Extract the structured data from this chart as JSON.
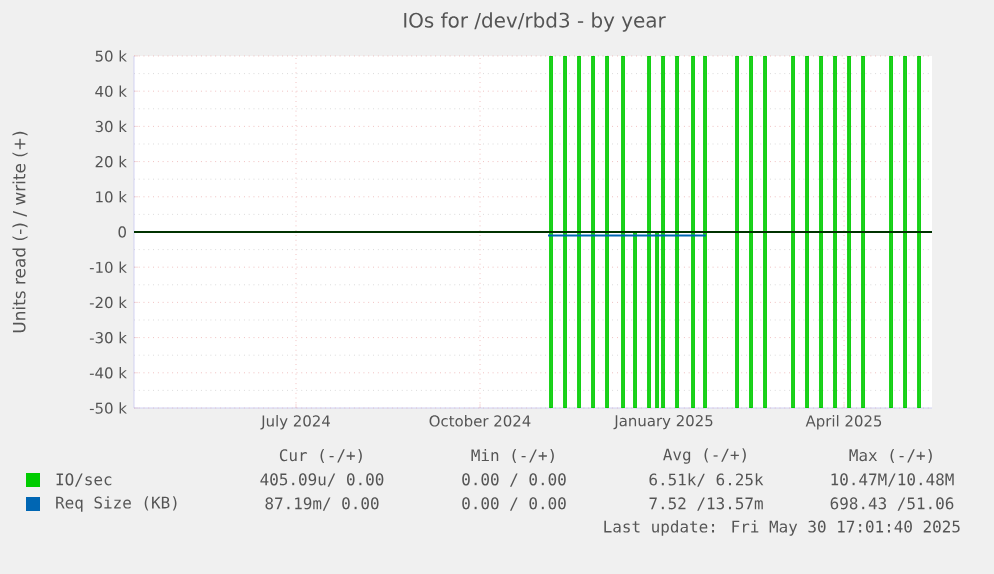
{
  "chart_data": {
    "type": "step",
    "title": "IOs for /dev/rbd3 - by year",
    "ylabel": "Units read (-) / write (+)",
    "xlim": [
      "2024-04-11",
      "2025-05-15"
    ],
    "ylim": [
      -50000,
      50000
    ],
    "xticks": [
      {
        "value": "2024-07-01",
        "label": "July 2024"
      },
      {
        "value": "2024-10-01",
        "label": "October 2024"
      },
      {
        "value": "2025-01-01",
        "label": "January 2025"
      },
      {
        "value": "2025-04-01",
        "label": "April 2025"
      }
    ],
    "yticks": [
      {
        "value": -50000,
        "label": "-50 k"
      },
      {
        "value": -40000,
        "label": "-40 k"
      },
      {
        "value": -30000,
        "label": "-30 k"
      },
      {
        "value": -20000,
        "label": "-20 k"
      },
      {
        "value": -10000,
        "label": "-10 k"
      },
      0,
      {
        "value": 10000,
        "label": "10 k"
      },
      {
        "value": 20000,
        "label": "20 k"
      },
      {
        "value": 30000,
        "label": "30 k"
      },
      {
        "value": 40000,
        "label": "40 k"
      },
      {
        "value": 50000,
        "label": "50 k"
      }
    ],
    "grid": true,
    "legend": "bottom",
    "ref_lines": [
      {
        "axis": "y",
        "value": 0,
        "color": "#000000"
      }
    ],
    "series": [
      {
        "name": "IO/sec",
        "color": "#00cc00",
        "x": [
          "2024-04-11",
          "2024-11-05",
          "2024-11-06",
          "2024-11-12",
          "2024-11-13",
          "2024-11-19",
          "2024-11-20",
          "2024-11-26",
          "2024-11-27",
          "2024-12-03",
          "2024-12-04",
          "2024-12-11",
          "2024-12-12",
          "2024-12-24",
          "2024-12-25",
          "2024-12-31",
          "2025-01-01",
          "2025-01-07",
          "2025-01-08",
          "2025-01-15",
          "2025-01-16",
          "2025-01-21",
          "2025-01-22",
          "2025-02-06",
          "2025-02-07",
          "2025-02-13",
          "2025-02-14",
          "2025-02-20",
          "2025-02-21",
          "2025-03-06",
          "2025-03-07",
          "2025-03-13",
          "2025-03-14",
          "2025-03-20",
          "2025-03-21",
          "2025-03-27",
          "2025-03-28",
          "2025-04-03",
          "2025-04-04",
          "2025-04-10",
          "2025-04-11",
          "2025-04-24",
          "2025-04-25",
          "2025-05-01",
          "2025-05-02",
          "2025-05-08",
          "2025-05-09",
          "2025-05-15"
        ],
        "values": [
          0,
          50000,
          0,
          50000,
          0,
          50000,
          0,
          50000,
          0,
          50000,
          0,
          50000,
          0,
          50000,
          0,
          50000,
          0,
          50000,
          0,
          50000,
          0,
          50000,
          0,
          50000,
          0,
          50000,
          0,
          50000,
          0,
          50000,
          0,
          50000,
          0,
          50000,
          0,
          50000,
          0,
          50000,
          0,
          50000,
          0,
          50000,
          0,
          50000,
          0,
          50000,
          0,
          0
        ]
      },
      {
        "color": "#00cc00",
        "x": [
          "2024-04-11",
          "2024-11-05",
          "2024-11-06",
          "2024-11-12",
          "2024-11-13",
          "2024-11-19",
          "2024-11-20",
          "2024-11-26",
          "2024-11-27",
          "2024-12-03",
          "2024-12-04",
          "2024-12-11",
          "2024-12-12",
          "2024-12-17",
          "2024-12-18",
          "2024-12-24",
          "2024-12-25",
          "2024-12-28",
          "2024-12-29",
          "2024-12-31",
          "2025-01-01",
          "2025-01-07",
          "2025-01-08",
          "2025-01-15",
          "2025-01-16",
          "2025-01-21",
          "2025-01-22",
          "2025-02-06",
          "2025-02-07",
          "2025-02-13",
          "2025-02-14",
          "2025-02-20",
          "2025-02-21",
          "2025-03-06",
          "2025-03-07",
          "2025-03-13",
          "2025-03-14",
          "2025-03-20",
          "2025-03-21",
          "2025-03-27",
          "2025-03-28",
          "2025-04-03",
          "2025-04-04",
          "2025-04-10",
          "2025-04-11",
          "2025-04-24",
          "2025-04-25",
          "2025-05-01",
          "2025-05-02",
          "2025-05-08",
          "2025-05-09",
          "2025-05-15"
        ],
        "values": [
          0,
          -50000,
          0,
          -50000,
          0,
          -50000,
          0,
          -50000,
          0,
          -50000,
          0,
          -50000,
          0,
          -50000,
          0,
          -50000,
          0,
          -50000,
          0,
          -50000,
          0,
          -50000,
          0,
          -50000,
          0,
          -50000,
          0,
          -50000,
          0,
          -50000,
          0,
          -50000,
          0,
          -50000,
          0,
          -50000,
          0,
          -50000,
          0,
          -50000,
          0,
          -50000,
          0,
          -50000,
          0,
          -50000,
          0,
          -50000,
          0,
          -50000,
          0,
          0
        ]
      },
      {
        "name": "Req Size (KB)",
        "type": "line",
        "color": "#0066b3",
        "x": [
          "2024-11-04",
          "2025-01-22"
        ],
        "values": [
          -1000,
          -1000
        ]
      }
    ],
    "annotations": [
      "Cur (-/+)",
      "Min (-/+)",
      "Avg (-/+)",
      "Max (-/+)",
      "405.09u/ 0.00",
      "0.00 / 0.00",
      "6.51k/ 6.25k",
      "10.47M/10.48M",
      "87.19m/ 0.00",
      "0.00 / 0.00",
      "7.52 /13.57m",
      "698.43 /51.06",
      "Last update: Fri May 30 17:01:40 2025"
    ]
  }
}
